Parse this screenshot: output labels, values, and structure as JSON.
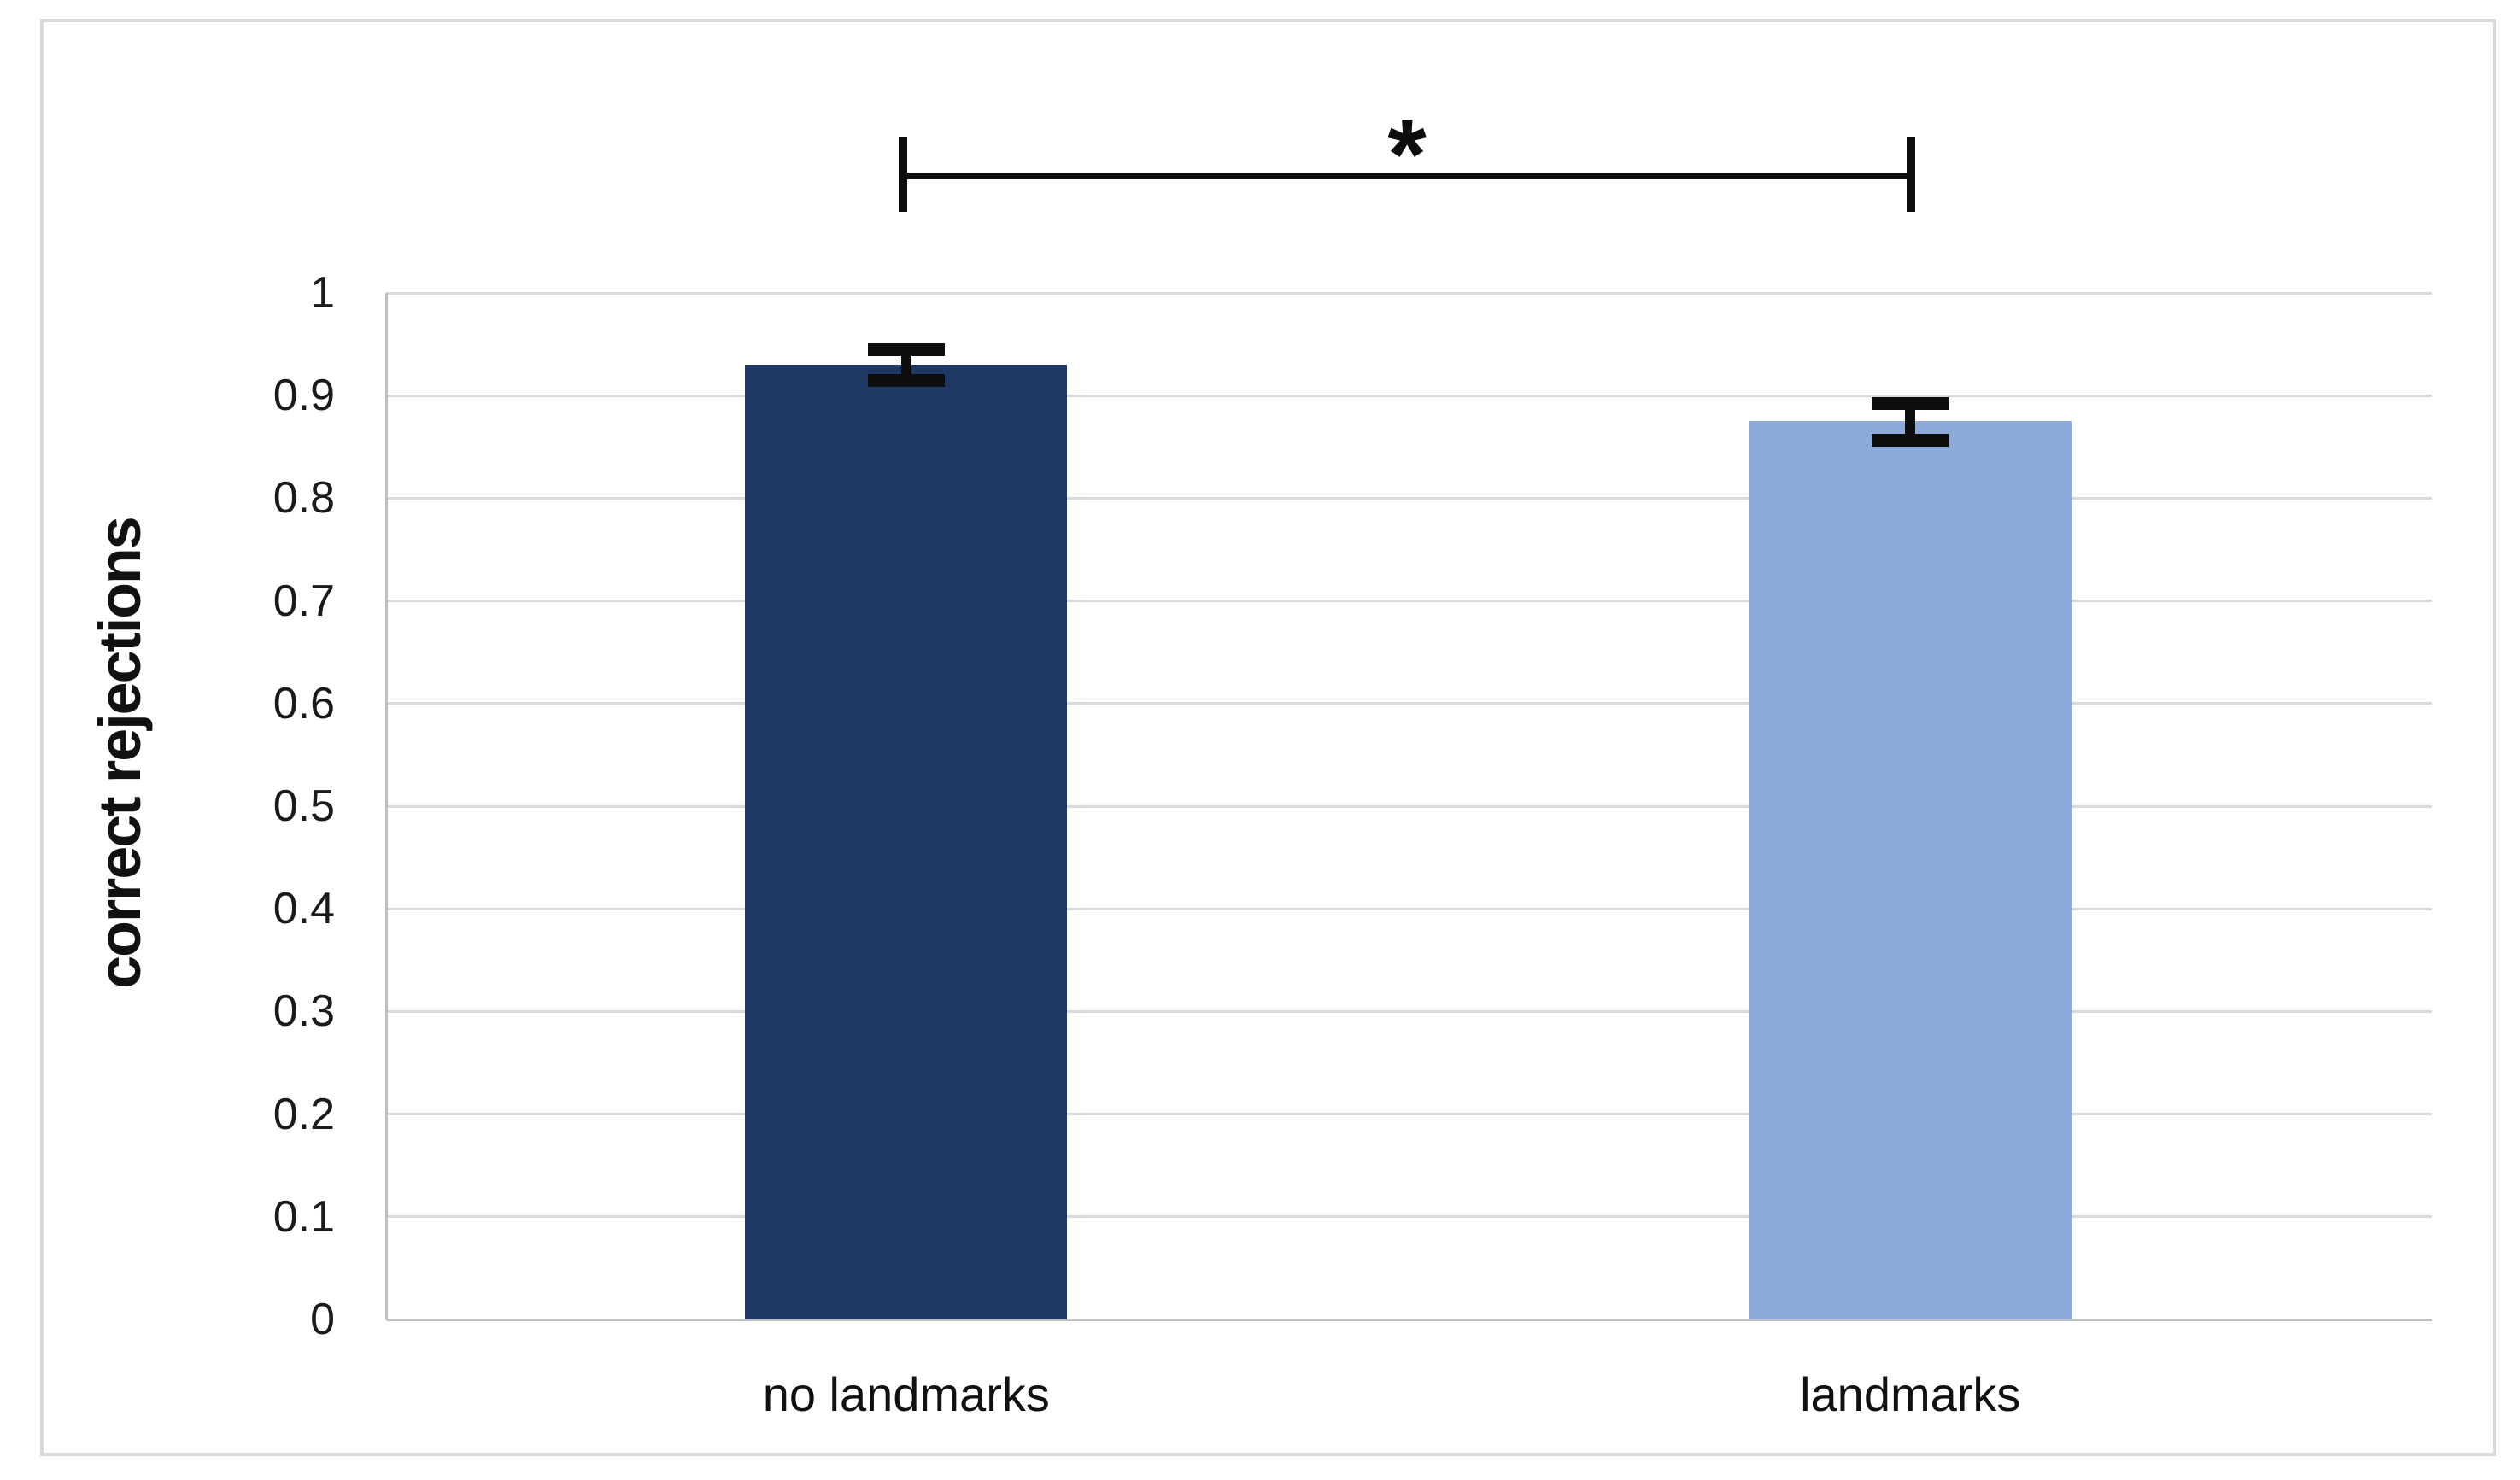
{
  "chart_data": {
    "type": "bar",
    "title": "",
    "ylabel": "correct rejections",
    "xlabel": "",
    "categories": [
      "no landmarks",
      "landmarks"
    ],
    "values": [
      0.93,
      0.875
    ],
    "errors": [
      0.015,
      0.018
    ],
    "bar_colors": [
      "#1F3864",
      "#8EAADB"
    ],
    "ylim": [
      0,
      1
    ],
    "ytick_step": 0.1,
    "ytick_labels": [
      "0",
      "0.1",
      "0.2",
      "0.3",
      "0.4",
      "0.5",
      "0.6",
      "0.7",
      "0.8",
      "0.9",
      "1"
    ],
    "grid": true,
    "legend_position": "none",
    "significance": {
      "label": "*",
      "between": [
        "no landmarks",
        "landmarks"
      ]
    },
    "colors": {
      "gridline": "#D9D9D9",
      "axis_line": "#BFBFBF",
      "error_bar": "#0D0D0D",
      "bracket": "#0D0D0D",
      "tick_text": "#1A1A1A",
      "background": "#FFFFFF",
      "figure_border": "#D9D9D9"
    }
  }
}
